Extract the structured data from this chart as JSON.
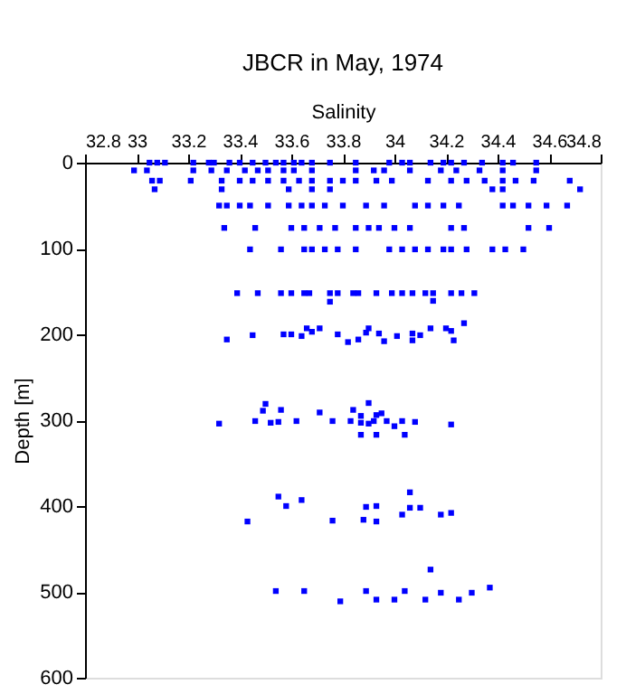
{
  "chart_data": {
    "type": "scatter",
    "title": "JBCR in May, 1974",
    "xlabel": "Salinity",
    "ylabel": "Depth [m]",
    "xlim": [
      32.8,
      34.8
    ],
    "xticks": [
      32.8,
      33,
      33.2,
      33.4,
      33.6,
      33.8,
      34,
      34.2,
      34.4,
      34.6,
      34.8
    ],
    "ylim": [
      600,
      0
    ],
    "yticks": [
      0,
      100,
      200,
      300,
      400,
      500,
      600
    ],
    "grid": false,
    "legend": false,
    "marker": "square",
    "series": [
      {
        "color": "#0000ff",
        "x": [
          33.05,
          33.08,
          33.11,
          33.22,
          33.28,
          33.3,
          33.36,
          33.4,
          33.45,
          33.5,
          33.54,
          33.57,
          33.61,
          33.64,
          33.68,
          33.75,
          33.85,
          33.98,
          34.03,
          34.06,
          34.14,
          34.19,
          34.22,
          34.27,
          34.34,
          34.42,
          34.46,
          34.55,
          32.99,
          33.04,
          33.22,
          33.29,
          33.35,
          33.42,
          33.47,
          33.51,
          33.57,
          33.61,
          33.68,
          33.85,
          33.92,
          33.96,
          34.06,
          34.18,
          34.24,
          34.33,
          34.42,
          34.55,
          33.06,
          33.09,
          33.21,
          33.33,
          33.4,
          33.45,
          33.51,
          33.57,
          33.63,
          33.68,
          33.75,
          33.8,
          33.85,
          33.93,
          33.99,
          34.13,
          34.22,
          34.28,
          34.35,
          34.42,
          34.47,
          34.54,
          34.68,
          33.07,
          33.33,
          33.59,
          33.68,
          33.75,
          34.38,
          34.42,
          34.72,
          33.32,
          33.35,
          33.4,
          33.44,
          33.51,
          33.59,
          33.64,
          33.68,
          33.73,
          33.8,
          33.89,
          33.96,
          34.08,
          34.13,
          34.19,
          34.25,
          34.42,
          34.46,
          34.52,
          34.59,
          34.67,
          33.34,
          33.46,
          33.6,
          33.65,
          33.71,
          33.77,
          33.85,
          33.9,
          33.94,
          34.0,
          34.06,
          34.22,
          34.27,
          34.52,
          34.6,
          33.44,
          33.56,
          33.65,
          33.68,
          33.73,
          33.78,
          33.85,
          33.98,
          34.03,
          34.08,
          34.13,
          34.19,
          34.22,
          34.28,
          34.38,
          34.43,
          34.5,
          33.39,
          33.47,
          33.56,
          33.6,
          33.65,
          33.67,
          33.75,
          33.78,
          33.84,
          33.86,
          33.93,
          33.99,
          34.03,
          34.07,
          34.12,
          34.15,
          34.22,
          34.26,
          34.31,
          33.75,
          34.15,
          33.35,
          33.45,
          33.57,
          33.6,
          33.64,
          33.66,
          33.68,
          33.71,
          33.78,
          33.82,
          33.86,
          33.89,
          33.9,
          33.94,
          33.96,
          34.01,
          34.07,
          34.07,
          34.1,
          34.14,
          34.2,
          34.22,
          34.23,
          34.27,
          33.32,
          33.46,
          33.49,
          33.5,
          33.52,
          33.55,
          33.56,
          33.62,
          33.71,
          33.76,
          33.83,
          33.84,
          33.87,
          33.87,
          33.87,
          33.9,
          33.9,
          33.92,
          33.93,
          33.93,
          33.95,
          33.97,
          34.0,
          34.03,
          34.04,
          34.08,
          34.22,
          33.43,
          33.55,
          33.58,
          33.64,
          33.76,
          33.88,
          33.89,
          33.93,
          33.93,
          34.03,
          34.06,
          34.06,
          34.1,
          34.18,
          34.22,
          33.54,
          33.65,
          33.79,
          33.89,
          33.93,
          34.0,
          34.04,
          34.12,
          34.14,
          34.18,
          34.25,
          34.3,
          34.37
        ],
        "values": [
          0,
          0,
          0,
          0,
          0,
          0,
          0,
          0,
          0,
          0,
          0,
          0,
          0,
          0,
          0,
          0,
          0,
          0,
          0,
          0,
          0,
          0,
          0,
          0,
          0,
          0,
          0,
          0,
          9,
          9,
          9,
          9,
          9,
          9,
          9,
          9,
          9,
          9,
          9,
          9,
          9,
          9,
          9,
          9,
          9,
          9,
          9,
          9,
          21,
          21,
          21,
          21,
          21,
          21,
          21,
          21,
          21,
          21,
          21,
          21,
          21,
          21,
          21,
          21,
          21,
          21,
          21,
          21,
          21,
          21,
          21,
          31,
          31,
          31,
          31,
          31,
          31,
          31,
          31,
          50,
          50,
          50,
          50,
          50,
          50,
          50,
          50,
          50,
          50,
          50,
          50,
          50,
          50,
          50,
          50,
          50,
          50,
          50,
          50,
          50,
          76,
          76,
          76,
          76,
          76,
          76,
          76,
          76,
          76,
          76,
          76,
          76,
          76,
          76,
          76,
          101,
          101,
          101,
          101,
          101,
          101,
          101,
          101,
          101,
          101,
          101,
          101,
          101,
          101,
          101,
          101,
          101,
          152,
          152,
          152,
          152,
          152,
          152,
          152,
          152,
          152,
          152,
          152,
          152,
          152,
          152,
          152,
          152,
          152,
          152,
          152,
          162,
          161,
          206,
          201,
          200,
          200,
          202,
          193,
          197,
          193,
          200,
          209,
          206,
          198,
          193,
          199,
          208,
          202,
          199,
          207,
          201,
          193,
          193,
          196,
          207,
          187,
          304,
          301,
          289,
          281,
          303,
          302,
          288,
          301,
          291,
          301,
          301,
          288,
          295,
          303,
          317,
          280,
          304,
          301,
          294,
          317,
          292,
          301,
          307,
          301,
          317,
          302,
          305,
          418,
          389,
          400,
          393,
          417,
          416,
          401,
          400,
          418,
          410,
          402,
          384,
          402,
          410,
          408,
          499,
          499,
          511,
          499,
          509,
          509,
          499,
          509,
          474,
          501,
          509,
          501,
          495
        ]
      }
    ]
  }
}
